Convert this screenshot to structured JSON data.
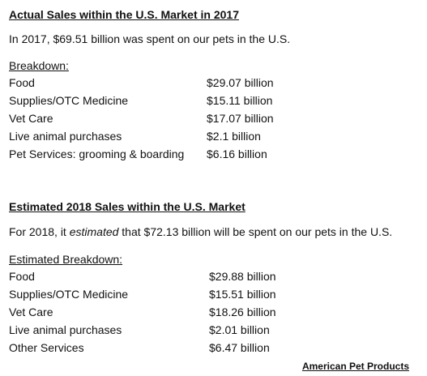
{
  "sections": [
    {
      "title": "Actual Sales within the U.S. Market in 2017",
      "intro": [
        "In 2017, $69.51 billion was spent on our pets in the U.S."
      ],
      "breakdown_heading": "Breakdown:",
      "rows": [
        [
          "Food",
          "$29.07 billion"
        ],
        [
          "Supplies/OTC Medicine",
          "$15.11 billion"
        ],
        [
          "Vet Care",
          "$17.07 billion"
        ],
        [
          "Live animal purchases",
          "$2.1 billion"
        ],
        [
          "Pet Services: grooming & boarding",
          "$6.16 billion"
        ]
      ]
    },
    {
      "title": "Estimated 2018 Sales within the U.S. Market",
      "intro": [
        "For 2018, it ",
        "estimated",
        " that $72.13 billion will be spent on our pets in the U.S."
      ],
      "breakdown_heading": "Estimated Breakdown:",
      "rows": [
        [
          "Food",
          "$29.88 billion"
        ],
        [
          "Supplies/OTC Medicine",
          "$15.51 billion"
        ],
        [
          "Vet Care",
          "$18.26 billion"
        ],
        [
          "Live animal purchases",
          "$2.01 billion"
        ],
        [
          "Other Services",
          "$6.47 billion"
        ]
      ]
    }
  ],
  "source": "American Pet Products"
}
